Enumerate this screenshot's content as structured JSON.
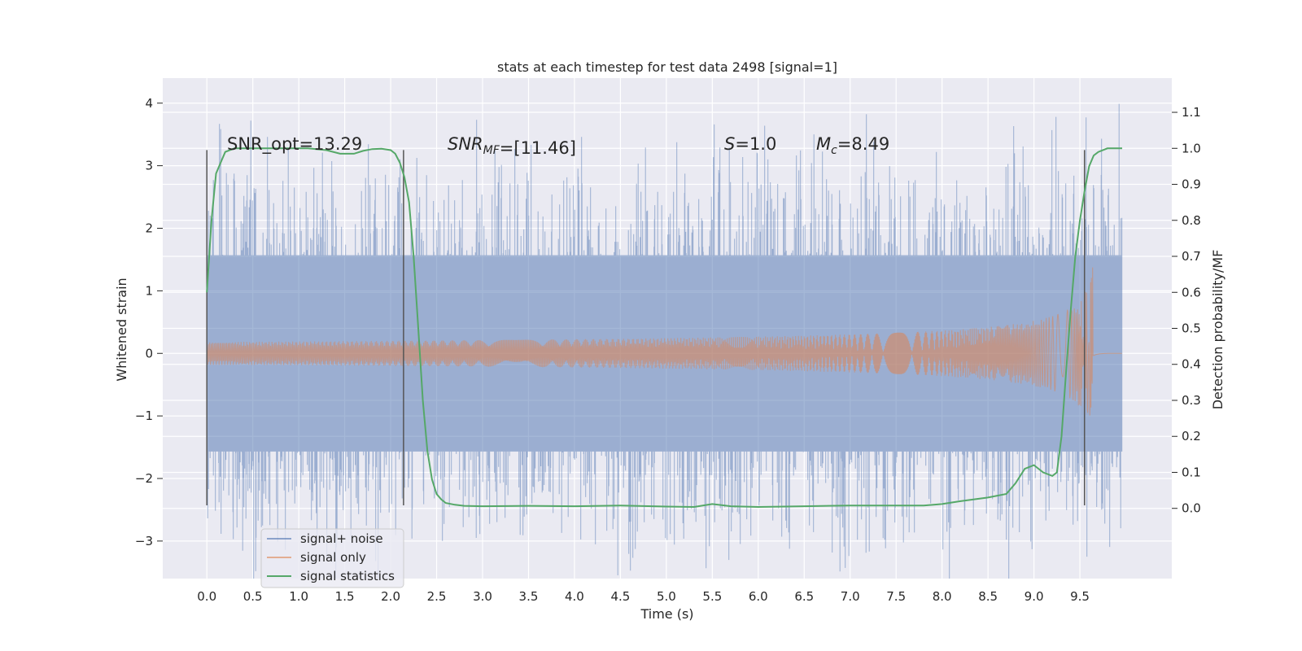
{
  "chart_data": {
    "type": "line",
    "title": "stats at each timestep for test data 2498 [signal=1]",
    "xlabel": "Time (s)",
    "ylabel": "Whitened strain",
    "y2label": "Detection probability/MF",
    "xlim": [
      -0.48,
      10.5
    ],
    "ylim": [
      -3.6,
      4.4
    ],
    "y2lim": [
      -0.195,
      1.195
    ],
    "xticks": [
      "0.0",
      "0.5",
      "1.0",
      "1.5",
      "2.0",
      "2.5",
      "3.0",
      "3.5",
      "4.0",
      "4.5",
      "5.0",
      "5.5",
      "6.0",
      "6.5",
      "7.0",
      "7.5",
      "8.0",
      "8.5",
      "9.0",
      "9.5"
    ],
    "yticks": [
      "−3",
      "−2",
      "−1",
      "0",
      "1",
      "2",
      "3",
      "4"
    ],
    "y2ticks": [
      "0.0",
      "0.1",
      "0.2",
      "0.3",
      "0.4",
      "0.5",
      "0.6",
      "0.7",
      "0.8",
      "0.9",
      "1.0",
      "1.1"
    ],
    "grid": true,
    "legend_position": "lower-left",
    "colors": {
      "noise": "#4c72b0",
      "signal": "#dd8452",
      "stats": "#55a868",
      "panel": "#eaeaf2",
      "marker": "#555555"
    },
    "annotations": {
      "snr_opt": "SNR_opt=13.29",
      "snr_mf_prefix": "SNR",
      "snr_mf_sub": "MF",
      "snr_mf_value": "=[11.46]",
      "s_prefix": "S",
      "s_value": "=1.0",
      "mc_prefix": "M",
      "mc_sub": "c",
      "mc_value": "=8.49"
    },
    "markers_x": [
      0.0,
      2.14,
      9.55
    ],
    "marker_y_range": [
      -2.43,
      3.25
    ],
    "series": [
      {
        "name": "signal+ noise",
        "kind": "noise",
        "x_range": [
          0.0,
          9.96
        ],
        "sigma": 1.0,
        "clip": 1.55,
        "max_abs": 4.05
      },
      {
        "name": "signal only",
        "kind": "chirp",
        "x_range": [
          0.0,
          9.96
        ],
        "peak_time": 9.65,
        "peak_amplitude": 1.5,
        "after_peak_amplitude": 0.05
      },
      {
        "name": "signal statistics",
        "kind": "line",
        "axis": "right",
        "x": [
          0.0,
          0.05,
          0.1,
          0.15,
          0.2,
          0.3,
          0.5,
          0.8,
          1.1,
          1.3,
          1.45,
          1.6,
          1.7,
          1.8,
          1.9,
          2.0,
          2.05,
          2.1,
          2.15,
          2.2,
          2.25,
          2.3,
          2.35,
          2.4,
          2.45,
          2.5,
          2.55,
          2.6,
          2.7,
          2.8,
          3.0,
          3.5,
          4.0,
          4.5,
          5.0,
          5.3,
          5.5,
          5.7,
          6.0,
          6.5,
          7.0,
          7.5,
          7.8,
          8.0,
          8.2,
          8.5,
          8.7,
          8.8,
          8.9,
          9.0,
          9.1,
          9.2,
          9.25,
          9.3,
          9.35,
          9.4,
          9.45,
          9.5,
          9.55,
          9.6,
          9.65,
          9.7,
          9.8,
          9.9,
          9.96
        ],
        "y": [
          0.6,
          0.8,
          0.93,
          0.96,
          0.99,
          1.0,
          1.0,
          1.0,
          1.0,
          0.995,
          0.985,
          0.985,
          0.993,
          0.998,
          0.999,
          0.995,
          0.985,
          0.96,
          0.92,
          0.85,
          0.7,
          0.5,
          0.3,
          0.16,
          0.08,
          0.04,
          0.025,
          0.015,
          0.01,
          0.007,
          0.006,
          0.007,
          0.006,
          0.008,
          0.005,
          0.004,
          0.012,
          0.006,
          0.004,
          0.006,
          0.008,
          0.008,
          0.008,
          0.012,
          0.02,
          0.03,
          0.04,
          0.07,
          0.11,
          0.12,
          0.1,
          0.09,
          0.1,
          0.2,
          0.38,
          0.55,
          0.7,
          0.8,
          0.88,
          0.95,
          0.98,
          0.99,
          1.0,
          1.0,
          1.0
        ]
      }
    ]
  }
}
